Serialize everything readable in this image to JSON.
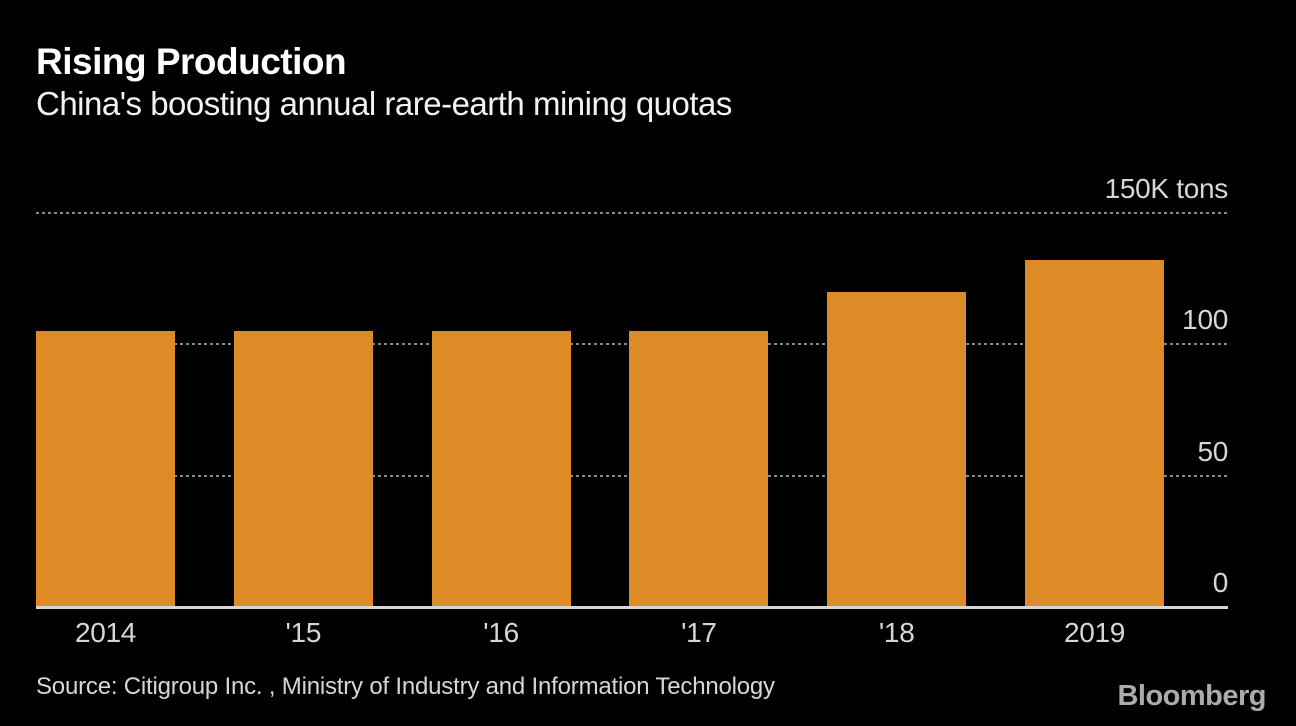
{
  "chart_data": {
    "type": "bar",
    "title": "Rising Production",
    "subtitle": "China's boosting annual rare-earth mining quotas",
    "categories": [
      "2014",
      "'15",
      "'16",
      "'17",
      "'18",
      "2019"
    ],
    "values": [
      105,
      105,
      105,
      105,
      120,
      132
    ],
    "value_unit": "thousand tons",
    "ylim": [
      0,
      150
    ],
    "yticks": [
      {
        "value": 150,
        "label": "150K tons"
      },
      {
        "value": 100,
        "label": "100"
      },
      {
        "value": 50,
        "label": "50"
      },
      {
        "value": 0,
        "label": "0"
      }
    ],
    "grid": "horizontal dotted lines at 50, 100, 150; solid baseline at 0",
    "legend": "none",
    "colors": {
      "background": "#000000",
      "bar": "#DD8B26",
      "title_text": "#FFFFFF",
      "axis_text": "#D6D6D6",
      "gridline": "#8A8A8A",
      "baseline": "#D6D6D6",
      "logo": "#ABABAB"
    }
  },
  "footer": {
    "source": "Source: Citigroup Inc. , Ministry of Industry and Information Technology",
    "brand": "Bloomberg"
  }
}
